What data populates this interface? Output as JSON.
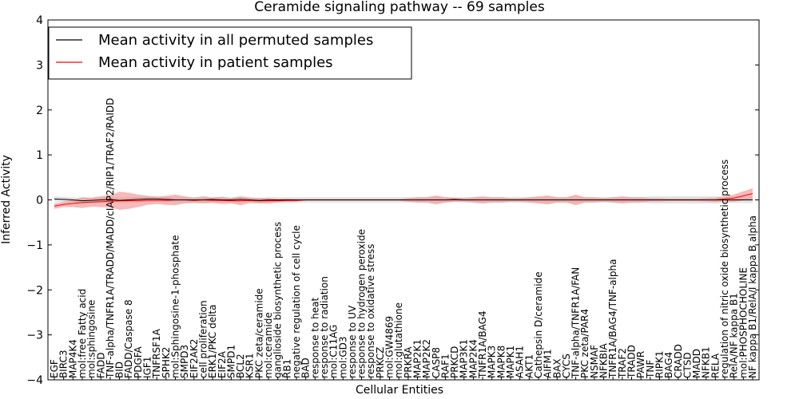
{
  "chart_data": {
    "type": "line",
    "title": "Ceramide signaling pathway -- 69 samples",
    "xlabel": "Cellular Entities",
    "ylabel": "Inferred Activity",
    "ylim": [
      -4,
      4
    ],
    "yticks": [
      -4,
      -3,
      -2,
      -1,
      0,
      1,
      2,
      3,
      4
    ],
    "ytick_labels": [
      "−4",
      "−3",
      "−2",
      "−1",
      "0",
      "1",
      "2",
      "3",
      "4"
    ],
    "legend_position": "top-left",
    "categories": [
      "EGF",
      "BIRC3",
      "MAP4K4",
      "mol:free Fatty acid",
      "mol:sphingosine",
      "FADD",
      "TNF-alpha/TNFR1A/TRADD/MADD/cIAP2/RIP1/TRAF2/RAIDD",
      "BID",
      "FADD/Caspase 8",
      "PDGFA",
      "IGF1",
      "TNFRSF1A",
      "SPHK2",
      "mol:Sphingosine-1-phosphate",
      "SMPD3",
      "EIF2AK2",
      "cell proliferation",
      "ERK1/PKC delta",
      "EIF2A",
      "SMPD1",
      "BCL2",
      "KSR1",
      "PKC zeta/ceramide",
      "mol:ceramide",
      "ganglioside biosynthetic process",
      "RB1",
      "negative regulation of cell cycle",
      "BAD",
      "response to heat",
      "response to radiation",
      "mol:C11AG",
      "mol:GD3",
      "response to UV",
      "response to hydrogen peroxide",
      "response to oxidative stress",
      "PRKCZ",
      "mol:GW4869",
      "mol:glutathione",
      "PRKRA",
      "MAP2K1",
      "MAP2K2",
      "CASP8",
      "RAF1",
      "PRKCD",
      "MAP3K1",
      "MAP2K4",
      "TNFR1A/BAG4",
      "MAPK3",
      "MAPK8",
      "MAPK1",
      "ASAH1",
      "AKT1",
      "Cathepsin D/ceramide",
      "AIFM1",
      "BAX",
      "CYCS",
      "TNF-alpha/TNFR1A/FAN",
      "PKC zeta/PAR4",
      "NSMAF",
      "NFKBIA",
      "TNFR1A/BAG4/TNF-alpha",
      "TRAF2",
      "TRADD",
      "PAWR",
      "TNF",
      "RIPK1",
      "BAG4",
      "CRADD",
      "CTSD",
      "MADD",
      "NFKB1",
      "RELA",
      "regulation of nitric oxide biosynthetic process",
      "RelA/NF kappa B1",
      "mol:PHOSPHOCHOLINE",
      "NF kappa B1/RelA/I kappa B alpha"
    ],
    "series": [
      {
        "name": "Mean activity in all permuted samples",
        "color": "#000000",
        "band_color": "#c8c8c8",
        "values": [
          0.02,
          0.01,
          0.0,
          -0.02,
          -0.01,
          0.0,
          0.01,
          -0.01,
          0.0,
          0.01,
          0.02,
          0.02,
          0.01,
          0.0,
          0.0,
          0.0,
          0.0,
          0.01,
          0.0,
          0.0,
          0.01,
          0.0,
          -0.01,
          0.0,
          0.0,
          0.0,
          0.0,
          0.0,
          0.0,
          0.0,
          0.0,
          0.0,
          0.0,
          0.0,
          0.0,
          0.0,
          0.0,
          0.0,
          0.0,
          0.0,
          0.0,
          0.0,
          0.0,
          0.01,
          0.0,
          0.0,
          0.0,
          0.0,
          0.0,
          0.0,
          0.0,
          0.0,
          0.0,
          0.0,
          0.0,
          0.0,
          0.0,
          0.0,
          0.0,
          0.0,
          0.0,
          0.0,
          0.0,
          0.0,
          0.0,
          0.0,
          0.0,
          0.0,
          0.0,
          0.0,
          0.0,
          0.0,
          0.0,
          0.0,
          0.0,
          0.0
        ],
        "band": [
          0.06,
          0.06,
          0.06,
          0.06,
          0.06,
          0.06,
          0.06,
          0.06,
          0.06,
          0.06,
          0.06,
          0.06,
          0.06,
          0.06,
          0.06,
          0.06,
          0.06,
          0.06,
          0.06,
          0.06,
          0.06,
          0.06,
          0.06,
          0.06,
          0.06,
          0.06,
          0.06,
          0.06,
          0.06,
          0.06,
          0.06,
          0.06,
          0.06,
          0.06,
          0.06,
          0.06,
          0.06,
          0.06,
          0.06,
          0.06,
          0.06,
          0.06,
          0.06,
          0.06,
          0.06,
          0.06,
          0.06,
          0.06,
          0.06,
          0.06,
          0.06,
          0.06,
          0.06,
          0.06,
          0.06,
          0.06,
          0.06,
          0.06,
          0.06,
          0.06,
          0.06,
          0.06,
          0.06,
          0.06,
          0.08,
          0.08,
          0.08,
          0.08,
          0.08,
          0.08,
          0.08,
          0.08,
          0.07,
          0.07,
          0.07,
          0.07
        ]
      },
      {
        "name": "Mean activity in patient samples",
        "color": "#ff0000",
        "band_color": "#f08080",
        "values": [
          -0.14,
          -0.1,
          -0.08,
          -0.06,
          -0.05,
          -0.04,
          -0.03,
          -0.02,
          -0.02,
          -0.02,
          -0.01,
          -0.01,
          -0.01,
          0.0,
          0.0,
          -0.01,
          0.0,
          -0.01,
          -0.01,
          -0.02,
          -0.02,
          -0.01,
          -0.02,
          -0.02,
          -0.02,
          -0.01,
          -0.01,
          0.0,
          0.0,
          0.0,
          0.0,
          0.0,
          0.0,
          0.0,
          0.0,
          0.0,
          0.0,
          0.0,
          0.0,
          0.0,
          0.0,
          0.0,
          0.0,
          0.0,
          0.0,
          0.0,
          0.0,
          0.0,
          0.0,
          0.0,
          0.0,
          0.0,
          0.0,
          0.0,
          0.0,
          0.0,
          0.0,
          0.0,
          0.0,
          0.0,
          0.0,
          0.0,
          0.0,
          0.0,
          0.0,
          0.0,
          0.0,
          0.0,
          0.0,
          0.0,
          0.0,
          0.0,
          0.02,
          0.04,
          0.09,
          0.14
        ],
        "band": [
          0.06,
          0.06,
          0.08,
          0.12,
          0.1,
          0.12,
          0.14,
          0.2,
          0.18,
          0.14,
          0.1,
          0.08,
          0.1,
          0.12,
          0.08,
          0.06,
          0.08,
          0.06,
          0.08,
          0.06,
          0.1,
          0.06,
          0.06,
          0.06,
          0.04,
          0.04,
          0.03,
          0.02,
          0.02,
          0.02,
          0.02,
          0.02,
          0.02,
          0.02,
          0.02,
          0.02,
          0.02,
          0.02,
          0.04,
          0.06,
          0.06,
          0.1,
          0.06,
          0.04,
          0.04,
          0.06,
          0.08,
          0.06,
          0.06,
          0.04,
          0.04,
          0.06,
          0.08,
          0.1,
          0.06,
          0.06,
          0.12,
          0.06,
          0.06,
          0.04,
          0.06,
          0.08,
          0.06,
          0.06,
          0.04,
          0.04,
          0.03,
          0.03,
          0.03,
          0.03,
          0.04,
          0.05,
          0.06,
          0.08,
          0.1,
          0.12
        ]
      }
    ]
  }
}
